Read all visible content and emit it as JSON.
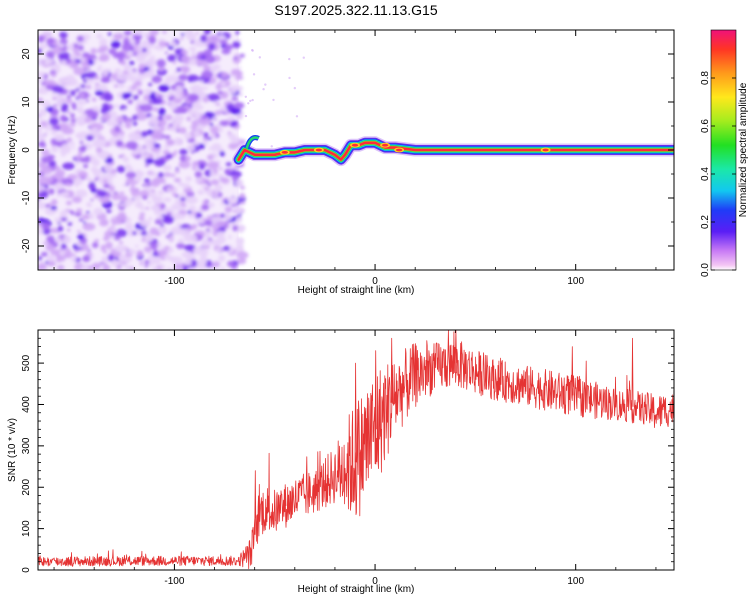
{
  "title": "S197.2025.322.11.13.G15",
  "chart_data": [
    {
      "type": "heatmap",
      "title": "S197.2025.322.11.13.G15",
      "xlabel": "Height of straight line (km)",
      "ylabel": "Frequency (Hz)",
      "xlim": [
        -168,
        149
      ],
      "ylim": [
        -25,
        25
      ],
      "xticks": [
        -100,
        0,
        100
      ],
      "yticks": [
        -20,
        -10,
        0,
        10,
        20
      ],
      "colorbar": {
        "label": "Normalized spectral amplitude",
        "range": [
          0,
          1
        ],
        "ticks": [
          "0.0",
          "0.2",
          "0.4",
          "0.6",
          "0.8"
        ],
        "tick_values": [
          0.0,
          0.2,
          0.4,
          0.6,
          0.8
        ]
      },
      "ridge": {
        "noise_region_x": [
          -168,
          -68
        ],
        "noise_level": 0.15,
        "trace": [
          [
            -68,
            -2
          ],
          [
            -65,
            0
          ],
          [
            -60,
            -1
          ],
          [
            -55,
            -1
          ],
          [
            -50,
            -1
          ],
          [
            -45,
            -0.5
          ],
          [
            -40,
            -0.5
          ],
          [
            -35,
            0
          ],
          [
            -30,
            0
          ],
          [
            -25,
            0
          ],
          [
            -20,
            -1
          ],
          [
            -17,
            -2
          ],
          [
            -15,
            -1
          ],
          [
            -12,
            1
          ],
          [
            -8,
            1
          ],
          [
            -5,
            1.5
          ],
          [
            0,
            1.5
          ],
          [
            5,
            0.5
          ],
          [
            10,
            0.5
          ],
          [
            20,
            0
          ],
          [
            40,
            0
          ],
          [
            60,
            0
          ],
          [
            80,
            0
          ],
          [
            90,
            0
          ],
          [
            100,
            0
          ],
          [
            120,
            0
          ],
          [
            149,
            0
          ]
        ],
        "hotspots": [
          [
            -45,
            -0.5
          ],
          [
            -28,
            0
          ],
          [
            -10,
            1
          ],
          [
            5,
            1
          ],
          [
            12,
            0
          ],
          [
            85,
            0
          ]
        ]
      }
    },
    {
      "type": "line",
      "xlabel": "Height of straight line (km)",
      "ylabel": "SNR (10 * v/v)",
      "xlim": [
        -168,
        149
      ],
      "ylim": [
        0,
        580
      ],
      "xticks": [
        -100,
        0,
        100
      ],
      "yticks": [
        0,
        100,
        200,
        300,
        400,
        500
      ],
      "series": [
        {
          "name": "SNR",
          "color": "#e53333",
          "envelope": {
            "x": [
              -168,
              -120,
              -68,
              -62,
              -58,
              -55,
              -50,
              -40,
              -30,
              -20,
              -15,
              -10,
              -5,
              0,
              10,
              20,
              30,
              40,
              50,
              60,
              80,
              100,
              120,
              135,
              140,
              149
            ],
            "mean": [
              20,
              22,
              22,
              40,
              130,
              150,
              140,
              170,
              190,
              230,
              250,
              260,
              300,
              340,
              420,
              470,
              490,
              500,
              480,
              460,
              440,
              420,
              400,
              390,
              380,
              390
            ],
            "spread": [
              12,
              12,
              12,
              40,
              60,
              60,
              55,
              55,
              55,
              70,
              110,
              150,
              150,
              150,
              100,
              80,
              60,
              60,
              55,
              50,
              50,
              50,
              40,
              40,
              45,
              40
            ]
          },
          "peaks": [
            [
              -60,
              240
            ],
            [
              -45,
              200
            ],
            [
              -10,
              500
            ],
            [
              0,
              530
            ],
            [
              8,
              560
            ],
            [
              40,
              580
            ],
            [
              98,
              540
            ],
            [
              128,
              560
            ]
          ]
        }
      ]
    }
  ]
}
